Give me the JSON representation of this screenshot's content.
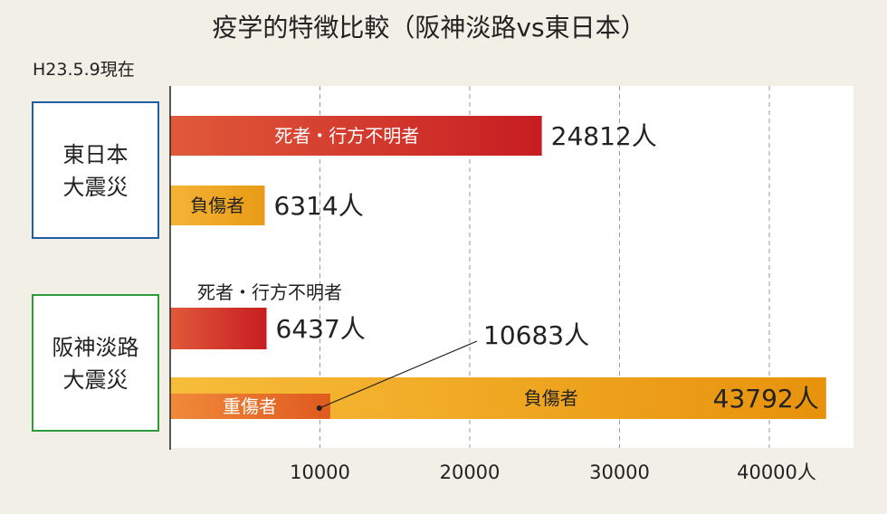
{
  "chart_data": {
    "type": "bar",
    "orientation": "horizontal",
    "title": "疫学的特徴比較（阪神淡路vs東日本）",
    "as_of": "H23.5.9現在",
    "unit": "人",
    "xlim": [
      0,
      46000
    ],
    "x_ticks": [
      10000,
      20000,
      30000,
      40000
    ],
    "x_tick_labels": [
      "10000",
      "20000",
      "30000",
      "40000人"
    ],
    "gridlines": "dashed-vertical",
    "groups": [
      {
        "name_lines": [
          "東日本",
          "大震災"
        ],
        "border_color": "#1f5fa5",
        "bars": [
          {
            "label": "死者・行方不明者",
            "label_position": "inside",
            "value": 24812,
            "value_label": "24812人",
            "color_start": "#e05a3a",
            "color_end": "#c71d22"
          },
          {
            "label": "負傷者",
            "label_position": "inside",
            "value": 6314,
            "value_label": "6314人",
            "color_start": "#f5b335",
            "color_end": "#e89b16"
          }
        ]
      },
      {
        "name_lines": [
          "阪神淡路",
          "大震災"
        ],
        "border_color": "#2b9b3c",
        "bars": [
          {
            "label": "死者・行方不明者",
            "label_position": "above",
            "value": 6437,
            "value_label": "6437人",
            "color_start": "#e05a3a",
            "color_end": "#c71d22"
          },
          {
            "label": "負傷者",
            "label_position": "inside",
            "value": 43792,
            "value_label": "43792人",
            "color_start": "#f7bd3a",
            "color_end": "#e8920c",
            "sub_bar": {
              "label": "重傷者",
              "value": 10683,
              "value_label": "10683人",
              "color_start": "#f08a3a",
              "color_end": "#df5a1e"
            }
          }
        ]
      }
    ]
  }
}
